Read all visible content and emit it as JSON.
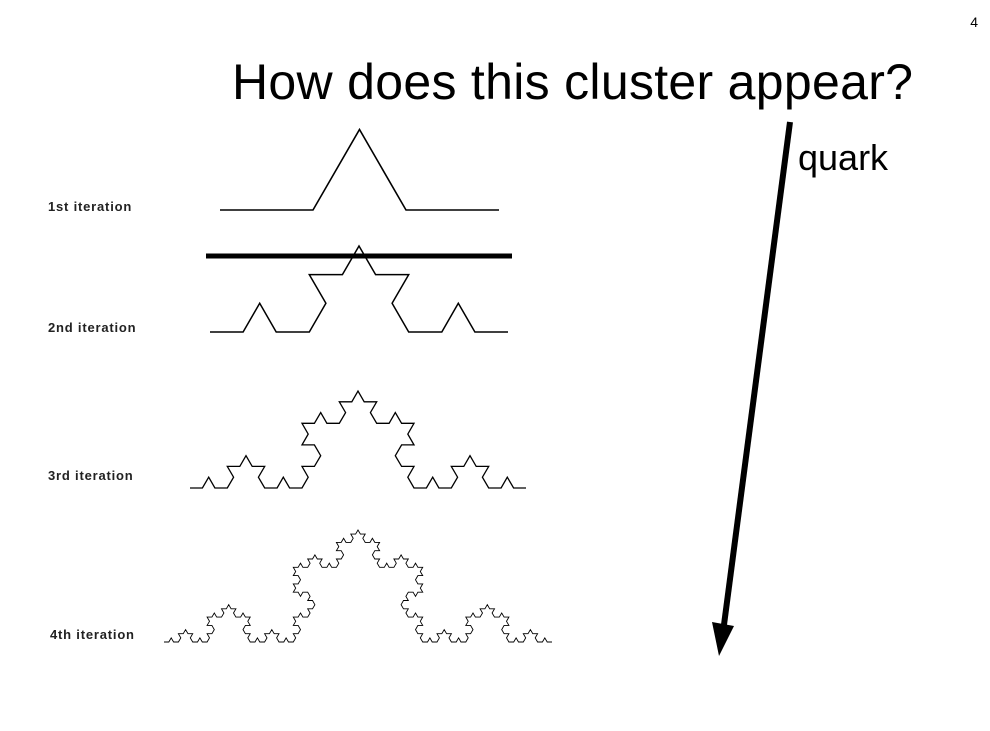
{
  "slide": {
    "number": "4",
    "title": "How does this cluster appear?"
  },
  "arrow": {
    "label": "quark",
    "color": "#000000"
  },
  "iterations": [
    {
      "label": "1st iteration",
      "level": 1
    },
    {
      "label": "2nd iteration",
      "level": 2
    },
    {
      "label": "3rd iteration",
      "level": 3
    },
    {
      "label": "4th iteration",
      "level": 4
    }
  ]
}
